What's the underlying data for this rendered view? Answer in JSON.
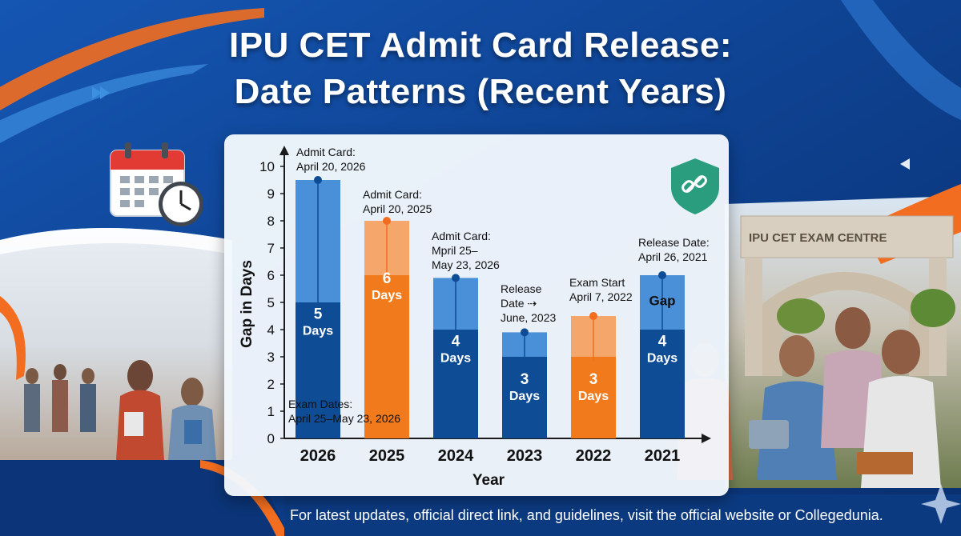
{
  "title_line1": "IPU CET Admit Card Release:",
  "title_line2": "Date Patterns (Recent Years)",
  "footer_text": "For latest updates, official direct link, and guidelines, visit the official website or Collegedunia.",
  "gate_sign": "IPU CET EXAM CENTRE",
  "colors": {
    "background": "#0f3f8f",
    "blue_light": "#4a90d9",
    "blue_dark": "#0e4c96",
    "orange_light": "#f5a66b",
    "orange_dark": "#f07a1c",
    "accent_orange": "#f26d1f",
    "shield": "#2a9d7f"
  },
  "icons": [
    "calendar-clock-icon",
    "shield-link-icon",
    "play-arrow-icon"
  ],
  "chart_data": {
    "type": "bar",
    "xlabel": "Year",
    "ylabel": "Gap in Days",
    "ylim": [
      0,
      10
    ],
    "yticks": [
      0,
      1,
      2,
      3,
      4,
      5,
      6,
      7,
      8,
      9,
      10
    ],
    "grid": false,
    "categories": [
      "2026",
      "2025",
      "2024",
      "2023",
      "2022",
      "2021"
    ],
    "values_total": [
      9.5,
      8,
      5.9,
      3.9,
      4.5,
      6
    ],
    "values_base": [
      5,
      6,
      4,
      3,
      3,
      4
    ],
    "palette": [
      "blue",
      "orange",
      "blue",
      "blue",
      "orange",
      "blue"
    ],
    "bar_labels": [
      [
        "5",
        "Days"
      ],
      [
        "6",
        "Days"
      ],
      [
        "4",
        "Days"
      ],
      [
        "3",
        "Days"
      ],
      [
        "3",
        "Days"
      ],
      [
        "4",
        "Days"
      ]
    ],
    "extra_label_2021": "Gap",
    "annotations": [
      [
        "Admit Card:",
        "April 20, 2026"
      ],
      [
        "Admit Card:",
        "April 20, 2025"
      ],
      [
        "Admit Card:",
        "Mpril 25–",
        "May 23, 2026"
      ],
      [
        "Release",
        "Date ⇢",
        "June, 2023"
      ],
      [
        "Exam Start",
        "April 7, 2022"
      ],
      [
        "Release Date:",
        "April 26, 2021"
      ]
    ],
    "exam_note": [
      "Exam Dates:",
      "April 25–May 23, 2026"
    ]
  }
}
